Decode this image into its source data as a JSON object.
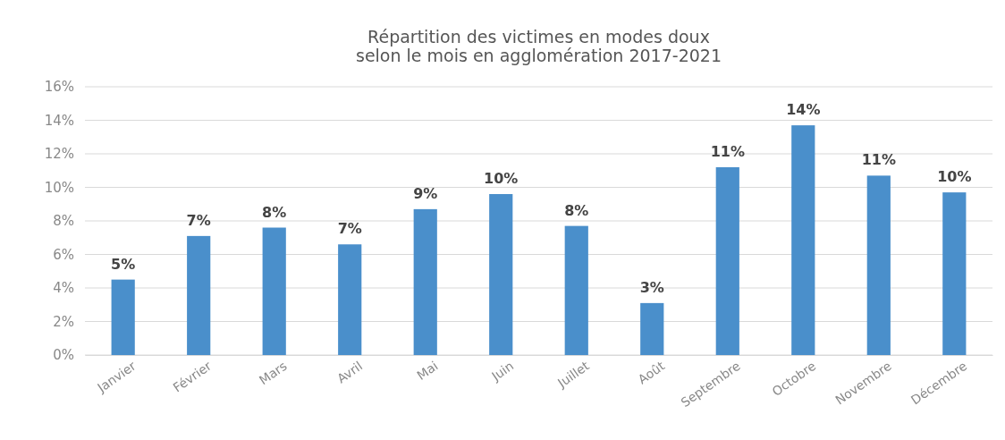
{
  "chart_data": {
    "type": "bar",
    "title": "Répartition des victimes en modes doux\nselon le mois en agglomération 2017-2021",
    "categories": [
      "Janvier",
      "Février",
      "Mars",
      "Avril",
      "Mai",
      "Juin",
      "Juillet",
      "Août",
      "Septembre",
      "Octobre",
      "Novembre",
      "Décembre"
    ],
    "values": [
      4.5,
      7.1,
      7.6,
      6.6,
      8.7,
      9.6,
      7.7,
      3.1,
      11.2,
      13.7,
      10.7,
      9.7
    ],
    "value_labels": [
      "5%",
      "7%",
      "8%",
      "7%",
      "9%",
      "10%",
      "8%",
      "3%",
      "11%",
      "14%",
      "11%",
      "10%"
    ],
    "color": "#4a8fcb",
    "ylim": [
      0,
      16
    ],
    "yticks": [
      {
        "value": 0,
        "label": "0%"
      },
      {
        "value": 2,
        "label": "2%"
      },
      {
        "value": 4,
        "label": "4%"
      },
      {
        "value": 6,
        "label": "6%"
      },
      {
        "value": 8,
        "label": "8%"
      },
      {
        "value": 10,
        "label": "10%"
      },
      {
        "value": 12,
        "label": "12%"
      },
      {
        "value": 14,
        "label": "14%"
      },
      {
        "value": 16,
        "label": "16%"
      }
    ],
    "grid": "y"
  }
}
